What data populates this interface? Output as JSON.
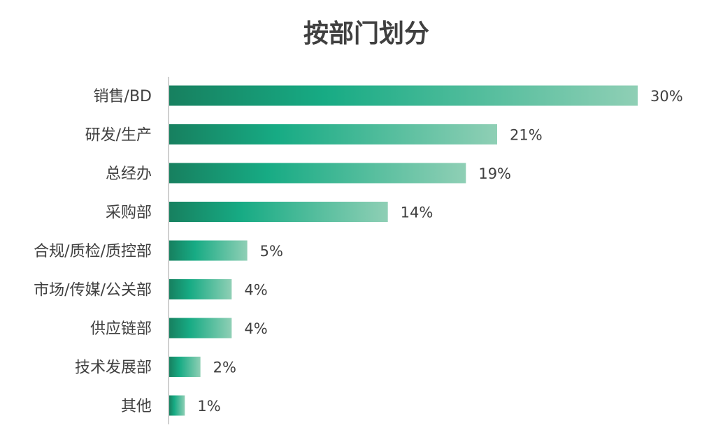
{
  "chart_data": {
    "type": "bar",
    "orientation": "horizontal",
    "title": "按部门划分",
    "categories": [
      "销售/BD",
      "研发/生产",
      "总经办",
      "采购部",
      "合规/质检/质控部",
      "市场/传媒/公关部",
      "供应链部",
      "技术发展部",
      "其他"
    ],
    "values": [
      30,
      21,
      19,
      14,
      5,
      4,
      4,
      2,
      1
    ],
    "value_labels": [
      "30%",
      "21%",
      "19%",
      "14%",
      "5%",
      "4%",
      "4%",
      "2%",
      "1%"
    ],
    "unit": "%",
    "xlim": [
      0,
      30
    ],
    "grid": false,
    "legend": "none",
    "colors": {
      "bar_dark": "#17805f",
      "bar_mid": "#17ab84",
      "bar_light": "#8fcfb5",
      "axis": "#d0d0d0",
      "text": "#404040"
    }
  }
}
